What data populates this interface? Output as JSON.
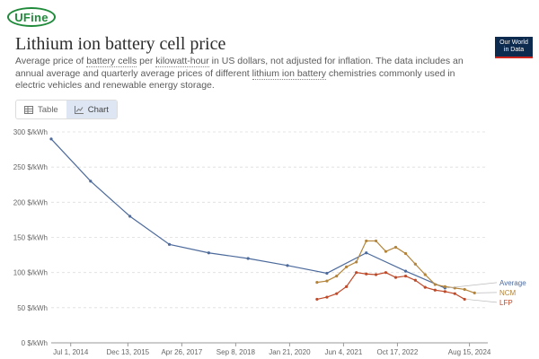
{
  "brand": {
    "logo_text": "UFine"
  },
  "header": {
    "title": "Lithium ion battery cell price",
    "subtitle_parts": [
      {
        "text": "Average price of ",
        "dotted": false
      },
      {
        "text": "battery cells",
        "dotted": true
      },
      {
        "text": " per ",
        "dotted": false
      },
      {
        "text": "kilowatt-hour",
        "dotted": true
      },
      {
        "text": " in US dollars, not adjusted for inflation. The data includes an annual average and quarterly average prices of different ",
        "dotted": false
      },
      {
        "text": "lithium ion battery",
        "dotted": true
      },
      {
        "text": " chemistries commonly used in electric vehicles and renewable energy storage.",
        "dotted": false
      }
    ],
    "owid_badge": {
      "line1": "Our World",
      "line2": "in Data"
    }
  },
  "tabs": [
    {
      "label": "Table",
      "icon": "table-icon",
      "active": false
    },
    {
      "label": "Chart",
      "icon": "line-chart-icon",
      "active": true
    }
  ],
  "colors": {
    "average": "#4c6a9c",
    "ncm": "#b3843a",
    "lfp": "#bf4a2a",
    "grid": "#dddddd",
    "axis": "#999999"
  },
  "chart_data": {
    "type": "line",
    "title": "Lithium ion battery cell price",
    "xlabel": "",
    "ylabel": "",
    "x_type": "date",
    "xlim": [
      "2014-01-01",
      "2025-02-01"
    ],
    "ylim": [
      0,
      300
    ],
    "y_ticks": [
      0,
      50,
      100,
      150,
      200,
      250,
      300
    ],
    "y_tick_format": "{v} $/kWh",
    "x_ticks": [
      {
        "date": "2014-07-01",
        "label": "Jul 1, 2014"
      },
      {
        "date": "2015-12-13",
        "label": "Dec 13, 2015"
      },
      {
        "date": "2017-04-26",
        "label": "Apr 26, 2017"
      },
      {
        "date": "2018-09-08",
        "label": "Sep 8, 2018"
      },
      {
        "date": "2020-01-21",
        "label": "Jan 21, 2020"
      },
      {
        "date": "2021-06-04",
        "label": "Jun 4, 2021"
      },
      {
        "date": "2022-10-17",
        "label": "Oct 17, 2022"
      },
      {
        "date": "2024-08-15",
        "label": "Aug 15, 2024"
      }
    ],
    "grid": true,
    "legend": "right-end labels",
    "series": [
      {
        "name": "Average",
        "color": "#4c6a9c",
        "points": [
          [
            "2014-01-01",
            290
          ],
          [
            "2015-01-01",
            230
          ],
          [
            "2016-01-01",
            180
          ],
          [
            "2017-01-01",
            140
          ],
          [
            "2018-01-01",
            128
          ],
          [
            "2019-01-01",
            120
          ],
          [
            "2020-01-01",
            110
          ],
          [
            "2021-01-01",
            99
          ],
          [
            "2022-01-01",
            128
          ],
          [
            "2023-01-01",
            102
          ],
          [
            "2024-01-01",
            78
          ]
        ]
      },
      {
        "name": "NCM",
        "color": "#b3843a",
        "points": [
          [
            "2020-10-01",
            86
          ],
          [
            "2021-01-01",
            88
          ],
          [
            "2021-04-01",
            95
          ],
          [
            "2021-07-01",
            108
          ],
          [
            "2021-10-01",
            115
          ],
          [
            "2022-01-01",
            145
          ],
          [
            "2022-04-01",
            145
          ],
          [
            "2022-07-01",
            130
          ],
          [
            "2022-10-01",
            136
          ],
          [
            "2023-01-01",
            127
          ],
          [
            "2023-04-01",
            112
          ],
          [
            "2023-07-01",
            97
          ],
          [
            "2023-10-01",
            83
          ],
          [
            "2024-01-01",
            80
          ],
          [
            "2024-04-01",
            78
          ],
          [
            "2024-07-01",
            76
          ],
          [
            "2024-10-01",
            71
          ]
        ]
      },
      {
        "name": "LFP",
        "color": "#bf4a2a",
        "points": [
          [
            "2020-10-01",
            62
          ],
          [
            "2021-01-01",
            65
          ],
          [
            "2021-04-01",
            70
          ],
          [
            "2021-07-01",
            80
          ],
          [
            "2021-10-01",
            100
          ],
          [
            "2022-01-01",
            98
          ],
          [
            "2022-04-01",
            97
          ],
          [
            "2022-07-01",
            100
          ],
          [
            "2022-10-01",
            93
          ],
          [
            "2023-01-01",
            95
          ],
          [
            "2023-04-01",
            89
          ],
          [
            "2023-07-01",
            79
          ],
          [
            "2023-10-01",
            75
          ],
          [
            "2024-01-01",
            73
          ],
          [
            "2024-04-01",
            70
          ],
          [
            "2024-07-01",
            62
          ]
        ]
      }
    ]
  }
}
